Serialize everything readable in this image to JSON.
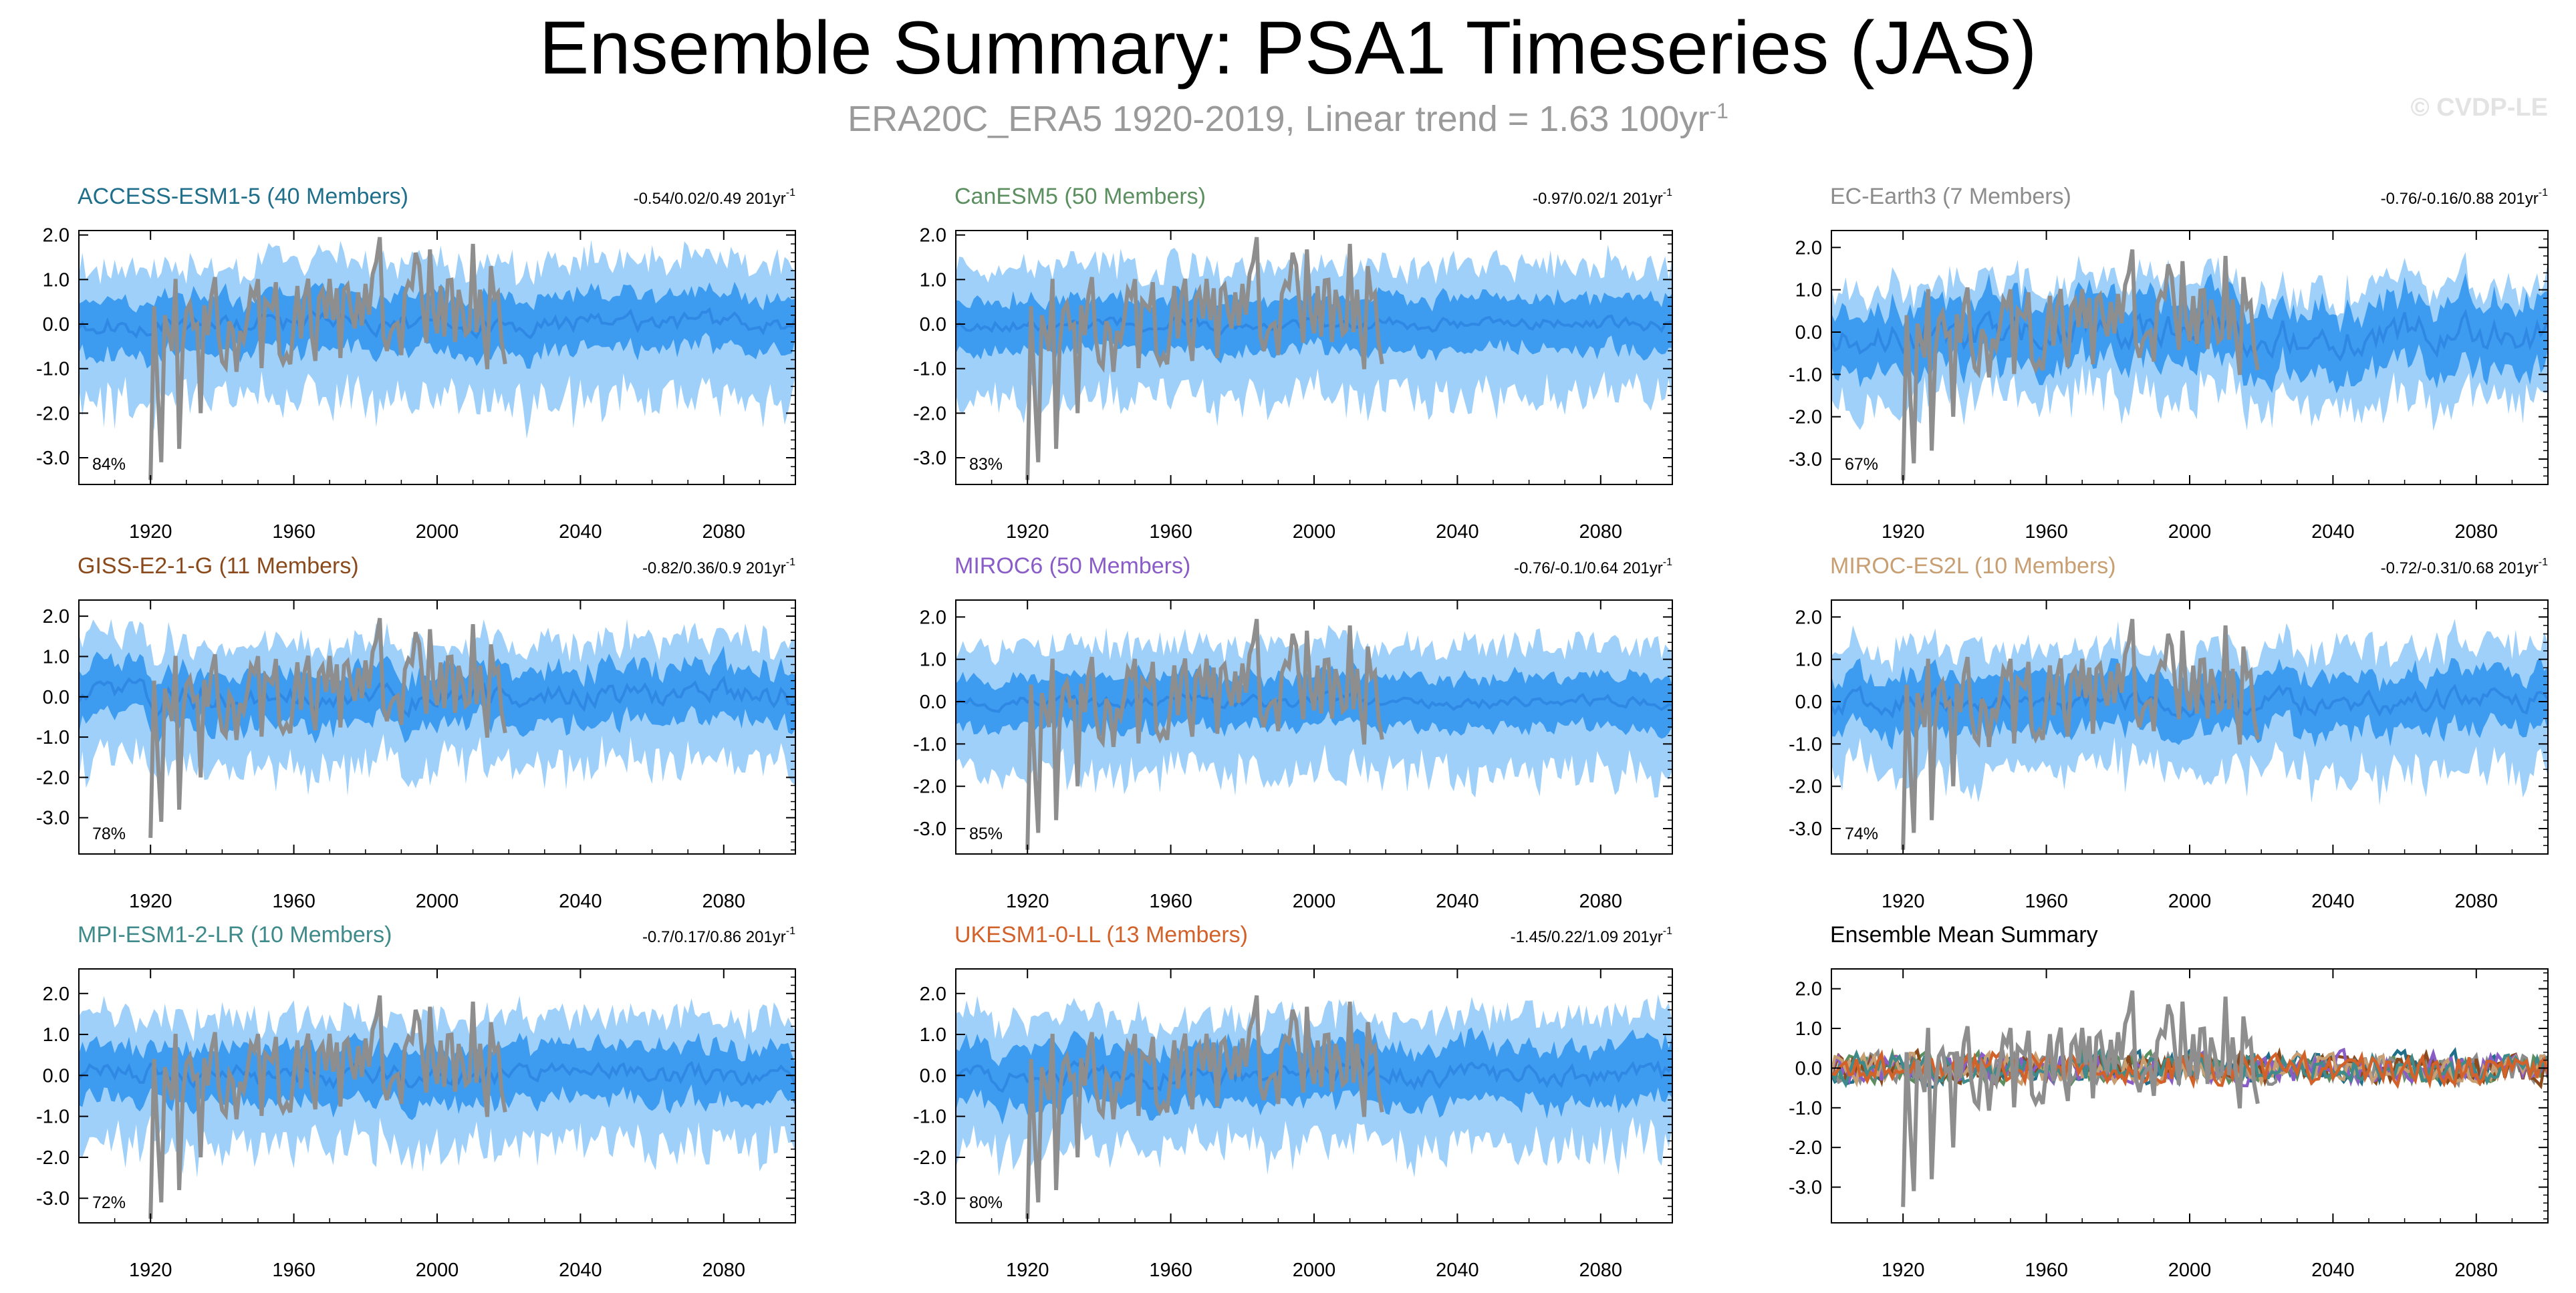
{
  "page": {
    "title": "Ensemble Summary: PSA1 Timeseries (JAS)",
    "subtitle_main": "ERA20C_ERA5 1920-2019, Linear trend = 1.63 100yr",
    "subtitle_exp": "-1",
    "watermark": "© CVDP-LE"
  },
  "colors": {
    "outer_band": "#9fd0fa",
    "inner_band": "#3d9cf0",
    "ens_mean_line": "#2f88e3",
    "obs_line": "#8e8e8e",
    "axis": "#000000"
  },
  "chart_data": [
    {
      "type": "area",
      "title": "ACCESS-ESM1-5 (40 Members)",
      "title_color": "#1f6f8b",
      "stats": "-0.54/0.02/0.49 201yr",
      "stats_exp": "-1",
      "percent": "84%",
      "xlim": [
        1900,
        2100
      ],
      "ylim": [
        -3.6,
        2.1
      ],
      "seed": 11,
      "outer_amp": 1.25,
      "inner_amp": 0.6,
      "mean_amp": 0.18,
      "xticks": [
        "1920",
        "1960",
        "2000",
        "2040",
        "2080"
      ],
      "yticks": [
        "2.0",
        "1.0",
        "0.0",
        "-1.0",
        "-2.0",
        "-3.0"
      ]
    },
    {
      "type": "area",
      "title": "CanESM5 (50 Members)",
      "title_color": "#5b8f5f",
      "stats": "-0.97/0.02/1 201yr",
      "stats_exp": "-1",
      "percent": "83%",
      "xlim": [
        1900,
        2100
      ],
      "ylim": [
        -3.6,
        2.1
      ],
      "seed": 23,
      "outer_amp": 1.2,
      "inner_amp": 0.58,
      "mean_amp": 0.12,
      "xticks": [
        "1920",
        "1960",
        "2000",
        "2040",
        "2080"
      ],
      "yticks": [
        "2.0",
        "1.0",
        "0.0",
        "-1.0",
        "-2.0",
        "-3.0"
      ]
    },
    {
      "type": "area",
      "title": "EC-Earth3 (7 Members)",
      "title_color": "#8c8c8c",
      "stats": "-0.76/-0.16/0.88 201yr",
      "stats_exp": "-1",
      "percent": "67%",
      "xlim": [
        1900,
        2100
      ],
      "ylim": [
        -3.6,
        2.4
      ],
      "seed": 37,
      "outer_amp": 1.1,
      "inner_amp": 0.75,
      "mean_amp": 0.35,
      "xticks": [
        "1920",
        "1960",
        "2000",
        "2040",
        "2080"
      ],
      "yticks": [
        "2.0",
        "1.0",
        "0.0",
        "-1.0",
        "-2.0",
        "-3.0"
      ]
    },
    {
      "type": "area",
      "title": "GISS-E2-1-G (11 Members)",
      "title_color": "#8b4a1c",
      "stats": "-0.82/0.36/0.9 201yr",
      "stats_exp": "-1",
      "percent": "78%",
      "xlim": [
        1900,
        2100
      ],
      "ylim": [
        -3.9,
        2.4
      ],
      "seed": 41,
      "outer_amp": 1.25,
      "inner_amp": 0.65,
      "mean_amp": 0.25,
      "xticks": [
        "1920",
        "1960",
        "2000",
        "2040",
        "2080"
      ],
      "yticks": [
        "2.0",
        "1.0",
        "0.0",
        "-1.0",
        "-2.0",
        "-3.0"
      ]
    },
    {
      "type": "area",
      "title": "MIROC6 (50 Members)",
      "title_color": "#8a5cc7",
      "stats": "-0.76/-0.1/0.64 201yr",
      "stats_exp": "-1",
      "percent": "85%",
      "xlim": [
        1900,
        2100
      ],
      "ylim": [
        -3.6,
        2.4
      ],
      "seed": 53,
      "outer_amp": 1.25,
      "inner_amp": 0.6,
      "mean_amp": 0.12,
      "xticks": [
        "1920",
        "1960",
        "2000",
        "2040",
        "2080"
      ],
      "yticks": [
        "2.0",
        "1.0",
        "0.0",
        "-1.0",
        "-2.0",
        "-3.0"
      ]
    },
    {
      "type": "area",
      "title": "MIROC-ES2L (10 Members)",
      "title_color": "#c89f72",
      "stats": "-0.72/-0.31/0.68 201yr",
      "stats_exp": "-1",
      "percent": "74%",
      "xlim": [
        1900,
        2100
      ],
      "ylim": [
        -3.6,
        2.4
      ],
      "seed": 67,
      "outer_amp": 1.2,
      "inner_amp": 0.65,
      "mean_amp": 0.22,
      "xticks": [
        "1920",
        "1960",
        "2000",
        "2040",
        "2080"
      ],
      "yticks": [
        "2.0",
        "1.0",
        "0.0",
        "-1.0",
        "-2.0",
        "-3.0"
      ]
    },
    {
      "type": "area",
      "title": "MPI-ESM1-2-LR (10 Members)",
      "title_color": "#3f8a8a",
      "stats": "-0.7/0.17/0.86 201yr",
      "stats_exp": "-1",
      "percent": "72%",
      "xlim": [
        1900,
        2100
      ],
      "ylim": [
        -3.6,
        2.6
      ],
      "seed": 71,
      "outer_amp": 1.3,
      "inner_amp": 0.65,
      "mean_amp": 0.22,
      "xticks": [
        "1920",
        "1960",
        "2000",
        "2040",
        "2080"
      ],
      "yticks": [
        "2.0",
        "1.0",
        "0.0",
        "-1.0",
        "-2.0",
        "-3.0"
      ]
    },
    {
      "type": "area",
      "title": "UKESM1-0-LL (13 Members)",
      "title_color": "#d2622a",
      "stats": "-1.45/0.22/1.09 201yr",
      "stats_exp": "-1",
      "percent": "80%",
      "xlim": [
        1900,
        2100
      ],
      "ylim": [
        -3.6,
        2.6
      ],
      "seed": 83,
      "outer_amp": 1.3,
      "inner_amp": 0.7,
      "mean_amp": 0.22,
      "xticks": [
        "1920",
        "1960",
        "2000",
        "2040",
        "2080"
      ],
      "yticks": [
        "2.0",
        "1.0",
        "0.0",
        "-1.0",
        "-2.0",
        "-3.0"
      ]
    },
    {
      "type": "line",
      "title": "Ensemble Mean Summary",
      "title_color": "#000000",
      "stats": "",
      "stats_exp": "",
      "percent": "",
      "xlim": [
        1900,
        2100
      ],
      "ylim": [
        -3.9,
        2.5
      ],
      "seed": 97,
      "series_colors": [
        "#1f6f8b",
        "#5b8f5f",
        "#8c8c8c",
        "#8b4a1c",
        "#8a5cc7",
        "#c89f72",
        "#3f8a8a",
        "#d2622a"
      ],
      "xticks": [
        "1920",
        "1960",
        "2000",
        "2040",
        "2080"
      ],
      "yticks": [
        "2.0",
        "1.0",
        "0.0",
        "-1.0",
        "-2.0",
        "-3.0"
      ]
    }
  ]
}
